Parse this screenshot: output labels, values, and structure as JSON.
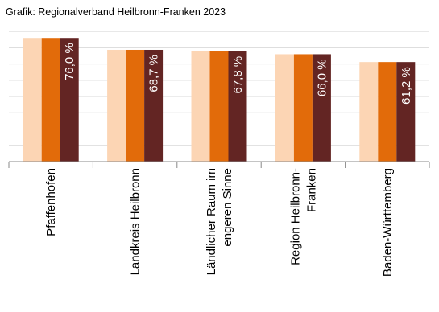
{
  "header": "Grafik: Regionalverband Heilbronn-Franken 2023",
  "chart_data": {
    "type": "bar",
    "categories": [
      [
        "Pfaffenhofen"
      ],
      [
        "Landkreis Heilbronn"
      ],
      [
        "Ländlicher Raum im",
        "engeren Sinne"
      ],
      [
        "Region Heilbronn-",
        "Franken"
      ],
      [
        "Baden-Württemberg"
      ]
    ],
    "series": [
      {
        "values": [
          76.0,
          68.7,
          67.8,
          66.0,
          61.2
        ],
        "color": "#fcd5b4"
      },
      {
        "values": [
          76.0,
          68.7,
          67.8,
          66.0,
          61.2
        ],
        "color": "#e26b0a"
      },
      {
        "values": [
          76.0,
          68.7,
          67.8,
          66.0,
          61.2
        ],
        "color": "#632523"
      }
    ],
    "data_labels": [
      "76,0 %",
      "68,7 %",
      "67,8 %",
      "66,0 %",
      "61,2 %"
    ],
    "ylim": [
      0,
      85
    ],
    "gridlines": [
      0,
      10,
      20,
      30,
      40,
      50,
      60,
      70,
      80
    ],
    "grid": true,
    "grid_color": "#d9d9d9"
  }
}
